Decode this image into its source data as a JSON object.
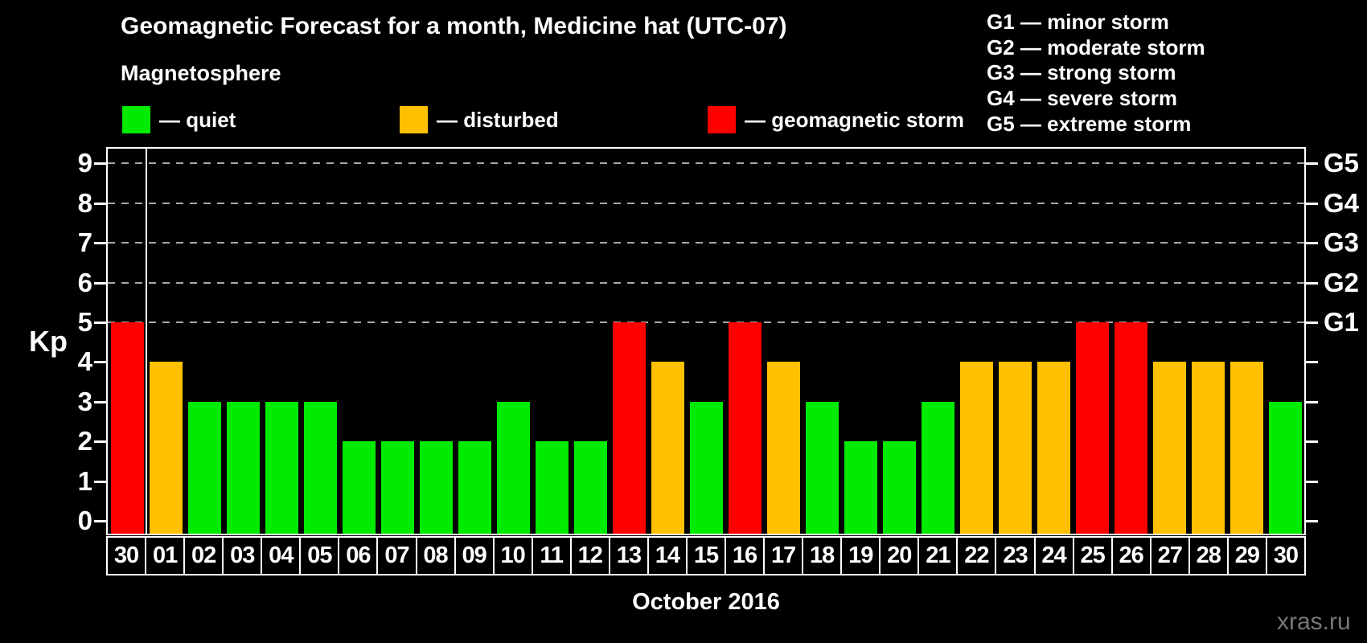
{
  "header": {
    "title": "Geomagnetic Forecast for a month, Medicine hat (UTC-07)",
    "subtitle": "Magnetosphere",
    "watermark": "xras.ru"
  },
  "legend": {
    "items": [
      {
        "key": "quiet",
        "label": "— quiet",
        "color": "#00EB00"
      },
      {
        "key": "disturbed",
        "label": "— disturbed",
        "color": "#FFC000"
      },
      {
        "key": "storm",
        "label": "— geomagnetic storm",
        "color": "#FF0000"
      }
    ]
  },
  "g_scale_legend": {
    "lines": [
      "G1 — minor storm",
      "G2 — moderate storm",
      "G3 — strong storm",
      "G4 — severe storm",
      "G5 — extreme storm"
    ]
  },
  "chart_data": {
    "type": "bar",
    "title": "Geomagnetic Forecast for a month, Medicine hat (UTC-07)",
    "xlabel": "October 2016",
    "ylabel": "Kp",
    "ylim": [
      0,
      9
    ],
    "yticks": [
      0,
      1,
      2,
      3,
      4,
      5,
      6,
      7,
      8,
      9
    ],
    "grid": "horizontal dashed lines at Kp 5-9 (G1-G5 levels)",
    "gridline_levels": [
      5,
      6,
      7,
      8,
      9
    ],
    "right_axis": [
      {
        "label": "G1",
        "kp": 5
      },
      {
        "label": "G2",
        "kp": 6
      },
      {
        "label": "G3",
        "kp": 7
      },
      {
        "label": "G4",
        "kp": 8
      },
      {
        "label": "G5",
        "kp": 9
      }
    ],
    "separator_after_first_category": true,
    "categories": [
      "30",
      "01",
      "02",
      "03",
      "04",
      "05",
      "06",
      "07",
      "08",
      "09",
      "10",
      "11",
      "12",
      "13",
      "14",
      "15",
      "16",
      "17",
      "18",
      "19",
      "20",
      "21",
      "22",
      "23",
      "24",
      "25",
      "26",
      "27",
      "28",
      "29",
      "30"
    ],
    "values": [
      5,
      4,
      3,
      3,
      3,
      3,
      2,
      2,
      2,
      2,
      3,
      2,
      2,
      5,
      4,
      3,
      5,
      4,
      3,
      2,
      2,
      3,
      4,
      4,
      4,
      5,
      5,
      4,
      4,
      4,
      3
    ],
    "statuses": [
      "storm",
      "disturbed",
      "quiet",
      "quiet",
      "quiet",
      "quiet",
      "quiet",
      "quiet",
      "quiet",
      "quiet",
      "quiet",
      "quiet",
      "quiet",
      "storm",
      "disturbed",
      "quiet",
      "storm",
      "disturbed",
      "quiet",
      "quiet",
      "quiet",
      "quiet",
      "disturbed",
      "disturbed",
      "disturbed",
      "storm",
      "storm",
      "disturbed",
      "disturbed",
      "disturbed",
      "quiet"
    ],
    "colors": {
      "quiet": "#00EB00",
      "disturbed": "#FFC000",
      "storm": "#FF0000"
    },
    "legend_position": "top-left",
    "background": "#000000"
  }
}
